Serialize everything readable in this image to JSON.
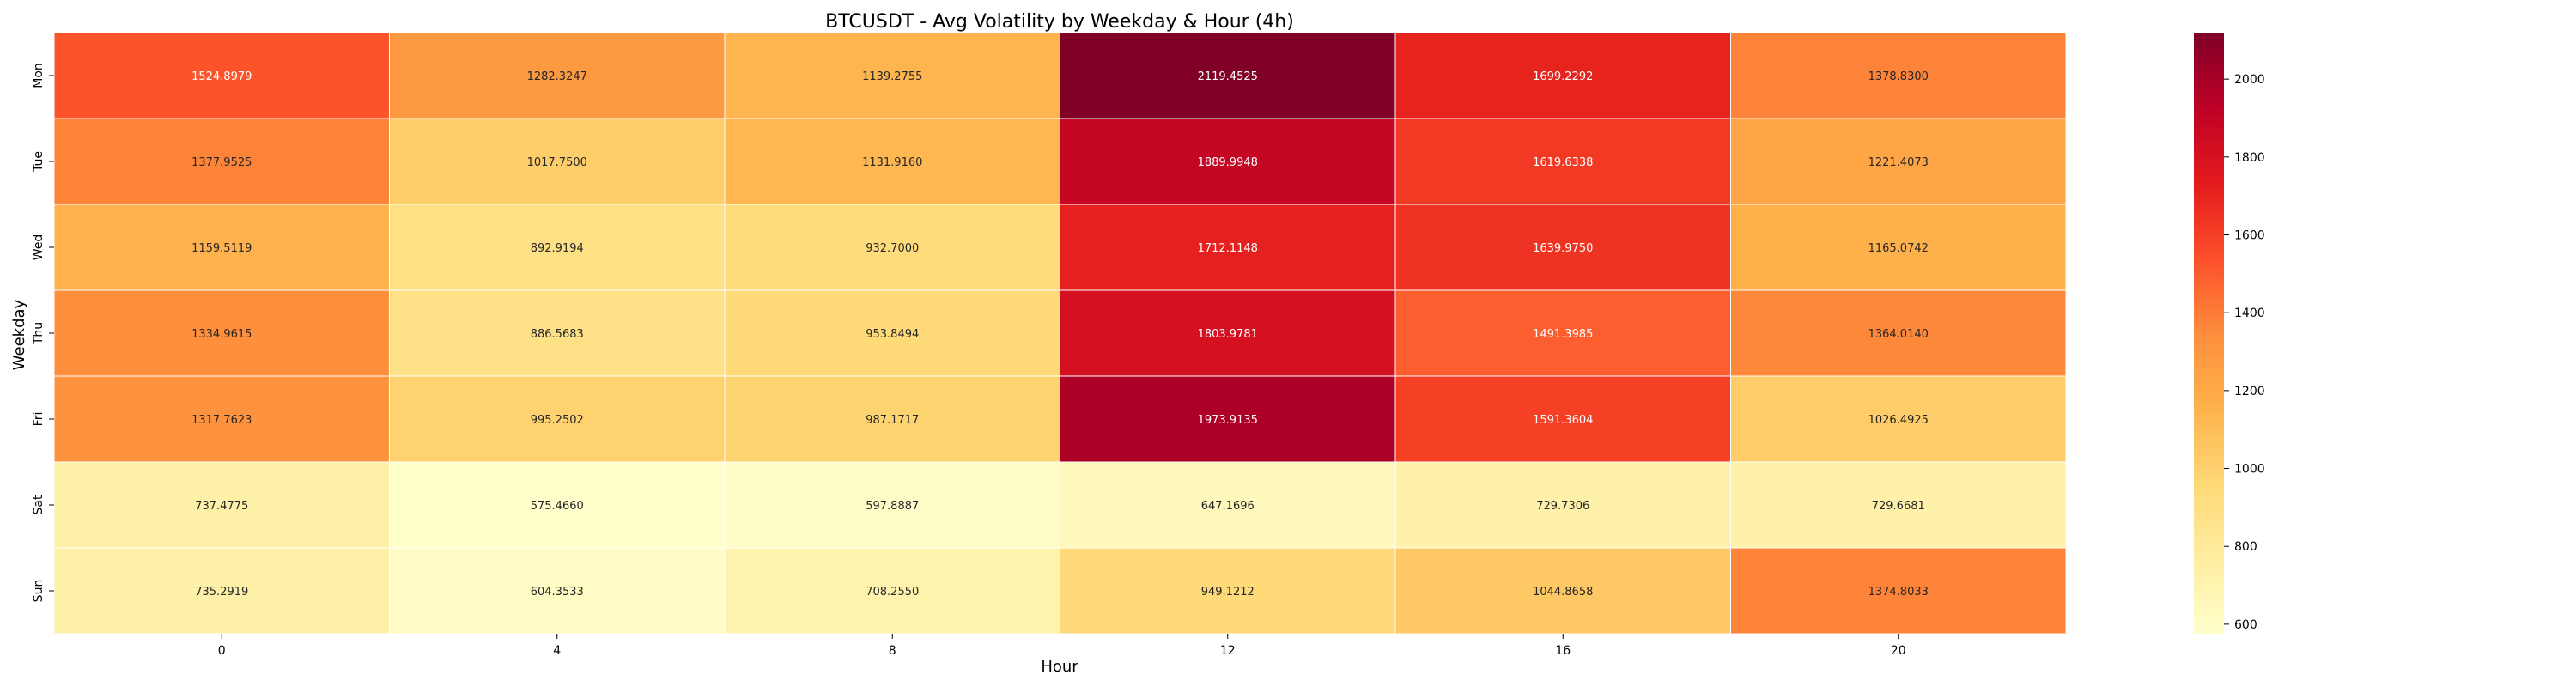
{
  "chart_data": {
    "type": "heatmap",
    "title": "BTCUSDT - Avg Volatility by Weekday & Hour (4h)",
    "xlabel": "Hour",
    "ylabel": "Weekday",
    "x_categories": [
      "0",
      "4",
      "8",
      "12",
      "16",
      "20"
    ],
    "y_categories": [
      "Mon",
      "Tue",
      "Wed",
      "Thu",
      "Fri",
      "Sat",
      "Sun"
    ],
    "values": [
      [
        1524.8979,
        1282.3247,
        1139.2755,
        2119.4525,
        1699.2292,
        1378.83
      ],
      [
        1377.9525,
        1017.75,
        1131.916,
        1889.9948,
        1619.6338,
        1221.4073
      ],
      [
        1159.5119,
        892.9194,
        932.7,
        1712.1148,
        1639.975,
        1165.0742
      ],
      [
        1334.9615,
        886.5683,
        953.8494,
        1803.9781,
        1491.3985,
        1364.014
      ],
      [
        1317.7623,
        995.2502,
        987.1717,
        1973.9135,
        1591.3604,
        1026.4925
      ],
      [
        737.4775,
        575.466,
        597.8887,
        647.1696,
        729.7306,
        729.6681
      ],
      [
        735.2919,
        604.3533,
        708.255,
        949.1212,
        1044.8658,
        1374.8033
      ]
    ],
    "value_format": "4 decimals",
    "colorbar": {
      "colormap": "YlOrRd",
      "ticks": [
        600,
        800,
        1000,
        1200,
        1400,
        1600,
        1800,
        2000
      ],
      "range": [
        575.466,
        2119.4525
      ]
    }
  }
}
